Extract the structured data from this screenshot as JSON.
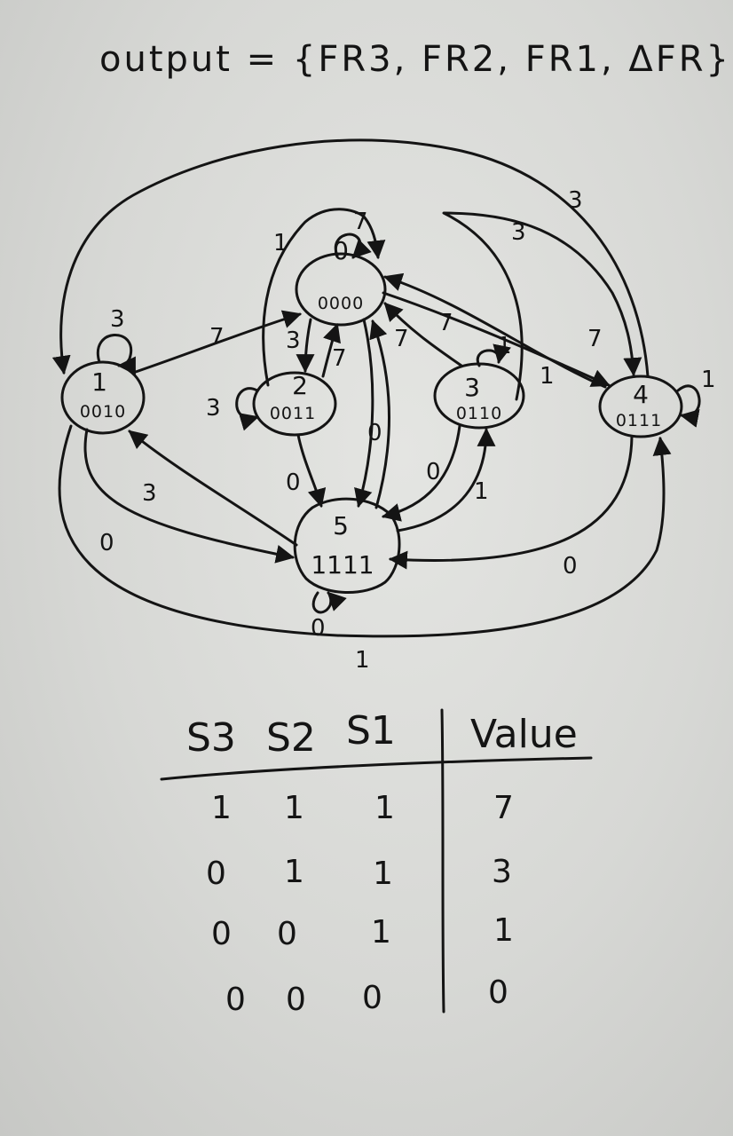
{
  "title": "output = {FR3, FR2, FR1, ΔFR}",
  "states": [
    {
      "id": "0",
      "code": "0000"
    },
    {
      "id": "1",
      "code": "0010"
    },
    {
      "id": "2",
      "code": "0011"
    },
    {
      "id": "3",
      "code": "0110"
    },
    {
      "id": "4",
      "code": "0111"
    },
    {
      "id": "5",
      "code": "1111"
    }
  ],
  "self_loops": [
    {
      "state": "0",
      "label": "7"
    },
    {
      "state": "1",
      "label": "3"
    },
    {
      "state": "2",
      "label": "3"
    },
    {
      "state": "3",
      "label": "1"
    },
    {
      "state": "4",
      "label": "1"
    },
    {
      "state": "5",
      "label": "0"
    }
  ],
  "transitions": [
    {
      "from": "1",
      "to": "0",
      "label": "7"
    },
    {
      "from": "2",
      "to": "0",
      "label": "7"
    },
    {
      "from": "0",
      "to": "2",
      "label": "3"
    },
    {
      "from": "2",
      "to": "0",
      "label": "1"
    },
    {
      "from": "3",
      "to": "0",
      "label": "7"
    },
    {
      "from": "4",
      "to": "0",
      "label": "7"
    },
    {
      "from": "0",
      "to": "4",
      "label": "1"
    },
    {
      "from": "3",
      "to": "4",
      "label": "3"
    },
    {
      "from": "4",
      "to": "1",
      "label": "3"
    },
    {
      "from": "0",
      "to": "5",
      "label": "0"
    },
    {
      "from": "5",
      "to": "0",
      "label": "7"
    },
    {
      "from": "2",
      "to": "5",
      "label": "0"
    },
    {
      "from": "3",
      "to": "5",
      "label": "0"
    },
    {
      "from": "5",
      "to": "3",
      "label": "1"
    },
    {
      "from": "5",
      "to": "1",
      "label": "3"
    },
    {
      "from": "1",
      "to": "5",
      "label": "0"
    },
    {
      "from": "4",
      "to": "5",
      "label": "0"
    },
    {
      "from": "1",
      "to": "4",
      "label": "1"
    }
  ],
  "table": {
    "headers": [
      "S3",
      "S2",
      "S1",
      "Value"
    ],
    "rows": [
      [
        "1",
        "1",
        "1",
        "7"
      ],
      [
        "0",
        "1",
        "1",
        "3"
      ],
      [
        "0",
        "0",
        "1",
        "1"
      ],
      [
        "0",
        "0",
        "0",
        "0"
      ]
    ]
  }
}
